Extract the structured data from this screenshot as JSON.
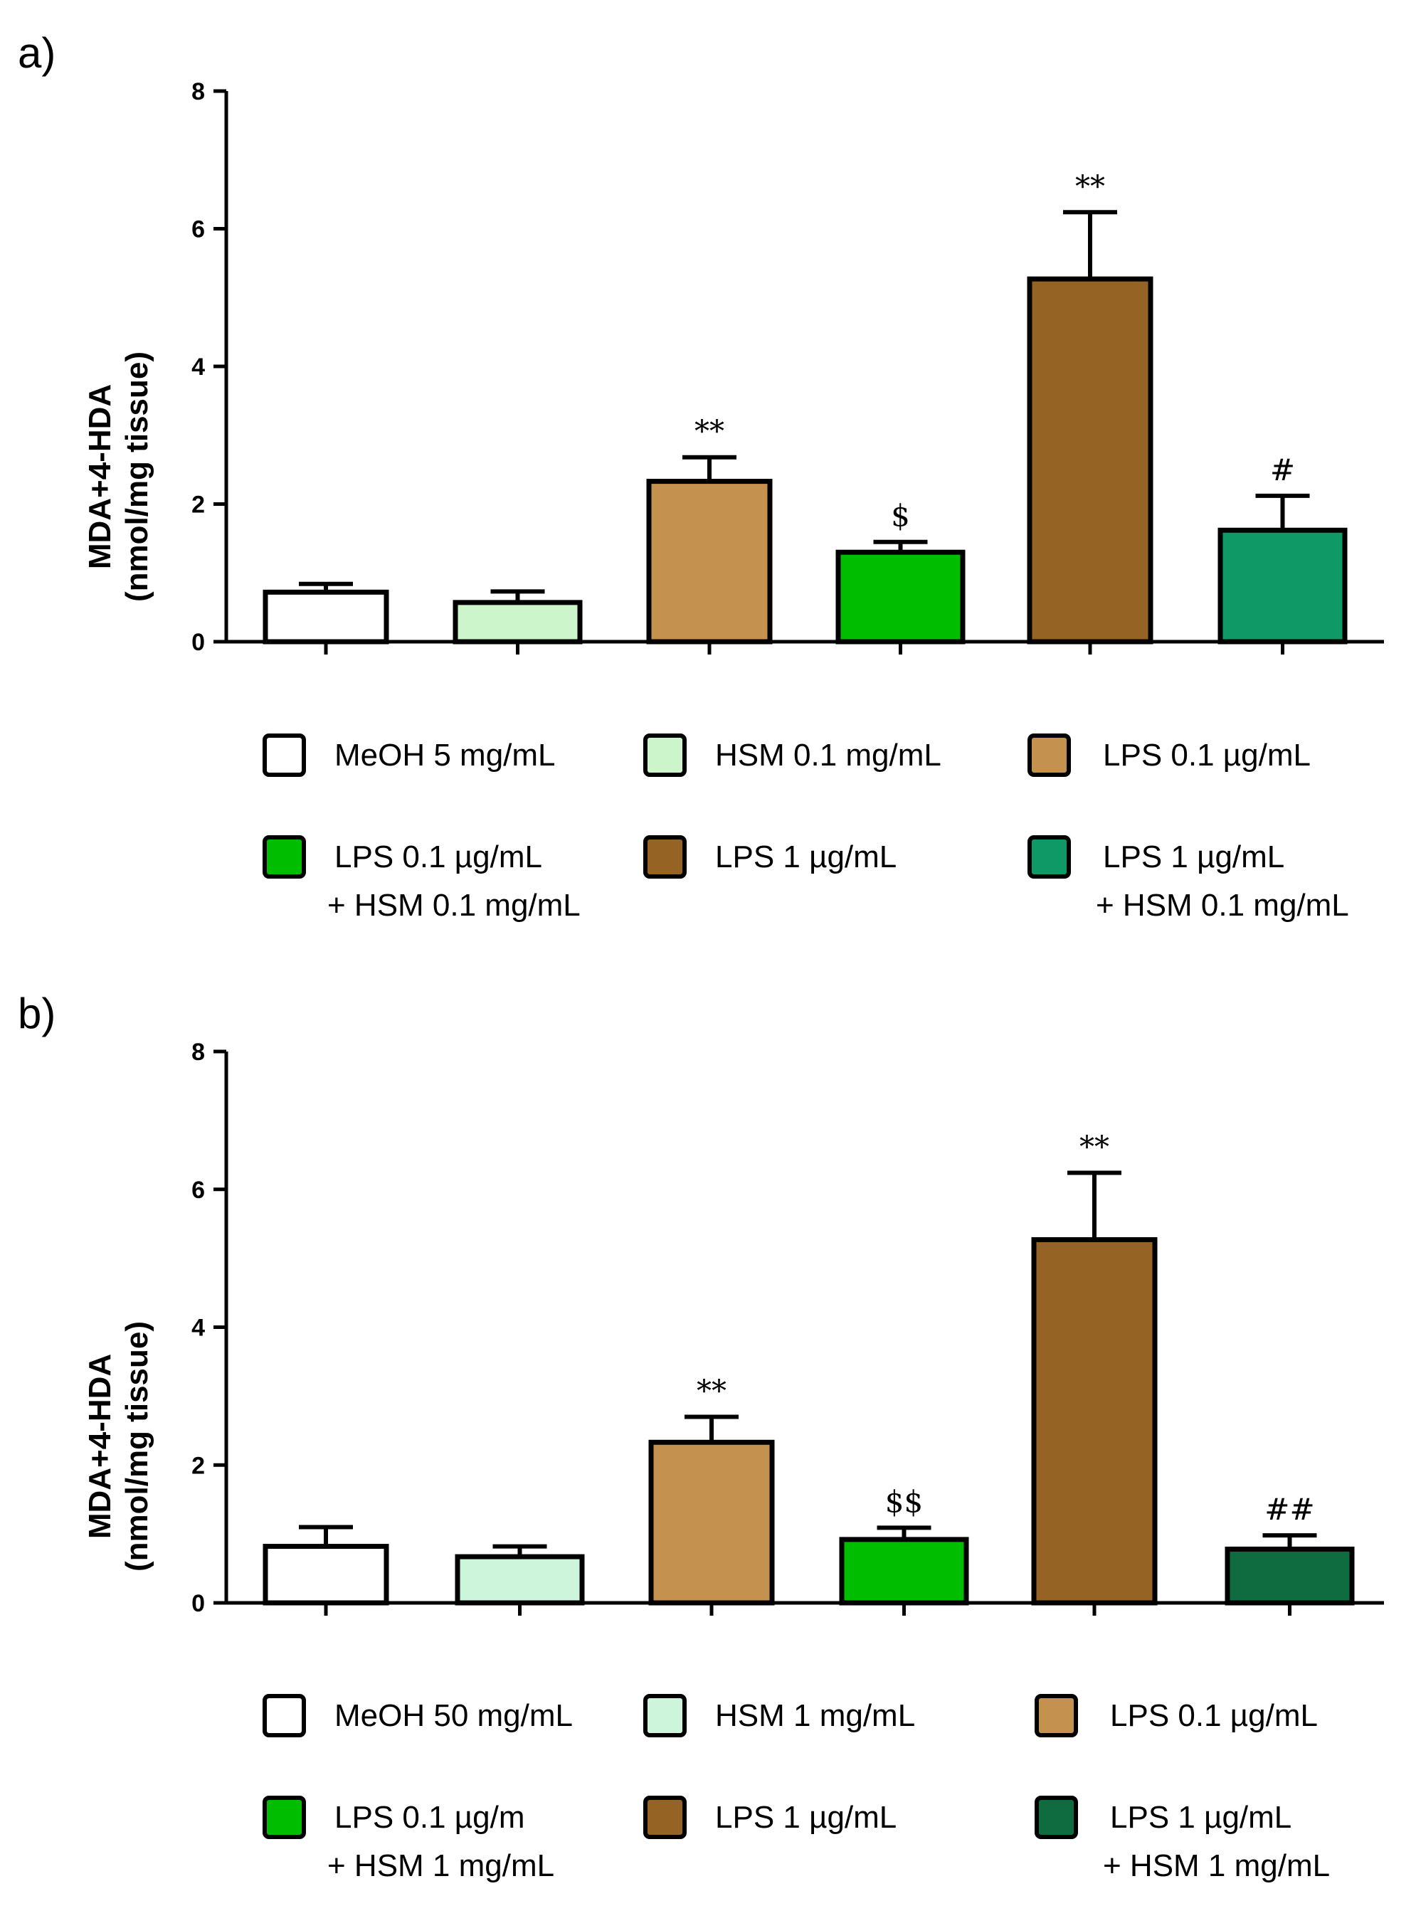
{
  "chart_data": [
    {
      "panel_label": "a)",
      "type": "bar",
      "ylabel_line1": "MDA+4-HDA",
      "ylabel_line2": "(nmol/mg tissue)",
      "ylim": [
        0,
        8
      ],
      "yticks": [
        "0",
        "2",
        "4",
        "6",
        "8"
      ],
      "bars": [
        {
          "label_line1": "MeOH 5 mg/mL",
          "label_line2": "",
          "value": 0.72,
          "error": 0.12,
          "significance": "",
          "color": "#ffffff"
        },
        {
          "label_line1": "HSM 0.1 mg/mL",
          "label_line2": "",
          "value": 0.57,
          "error": 0.16,
          "significance": "",
          "color": "#ccf5cc"
        },
        {
          "label_line1": "LPS 0.1 µg/mL",
          "label_line2": "",
          "value": 2.33,
          "error": 0.35,
          "significance": "**",
          "color": "#c4914f"
        },
        {
          "label_line1": "LPS 0.1 µg/mL",
          "label_line2": "+ HSM 0.1 mg/mL",
          "value": 1.3,
          "error": 0.15,
          "significance": "$",
          "color": "#00bd00"
        },
        {
          "label_line1": "LPS 1 µg/mL",
          "label_line2": "",
          "value": 5.27,
          "error": 0.97,
          "significance": "**",
          "color": "#956324"
        },
        {
          "label_line1": "LPS 1 µg/mL",
          "label_line2": "+ HSM 0.1 mg/mL",
          "value": 1.62,
          "error": 0.5,
          "significance": "#",
          "color": "#0e9966"
        }
      ]
    },
    {
      "panel_label": "b)",
      "type": "bar",
      "ylabel_line1": "MDA+4-HDA",
      "ylabel_line2": "(nmol/mg tissue)",
      "ylim": [
        0,
        8
      ],
      "yticks": [
        "0",
        "2",
        "4",
        "6",
        "8"
      ],
      "bars": [
        {
          "label_line1": "MeOH 50 mg/mL",
          "label_line2": "",
          "value": 0.82,
          "error": 0.28,
          "significance": "",
          "color": "#ffffff"
        },
        {
          "label_line1": "HSM 1 mg/mL",
          "label_line2": "",
          "value": 0.67,
          "error": 0.15,
          "significance": "",
          "color": "#ccf5dc"
        },
        {
          "label_line1": "LPS 0.1 µg/mL",
          "label_line2": "",
          "value": 2.33,
          "error": 0.37,
          "significance": "**",
          "color": "#c4914f"
        },
        {
          "label_line1": "LPS 0.1 µg/m",
          "label_line2": "+ HSM 1 mg/mL",
          "value": 0.92,
          "error": 0.17,
          "significance": "$$",
          "color": "#00bd00"
        },
        {
          "label_line1": "LPS 1 µg/mL",
          "label_line2": "",
          "value": 5.27,
          "error": 0.97,
          "significance": "**",
          "color": "#956324"
        },
        {
          "label_line1": "LPS 1 µg/mL",
          "label_line2": "+ HSM 1 mg/mL",
          "value": 0.78,
          "error": 0.2,
          "significance": "##",
          "color": "#0f6b40"
        }
      ]
    }
  ]
}
